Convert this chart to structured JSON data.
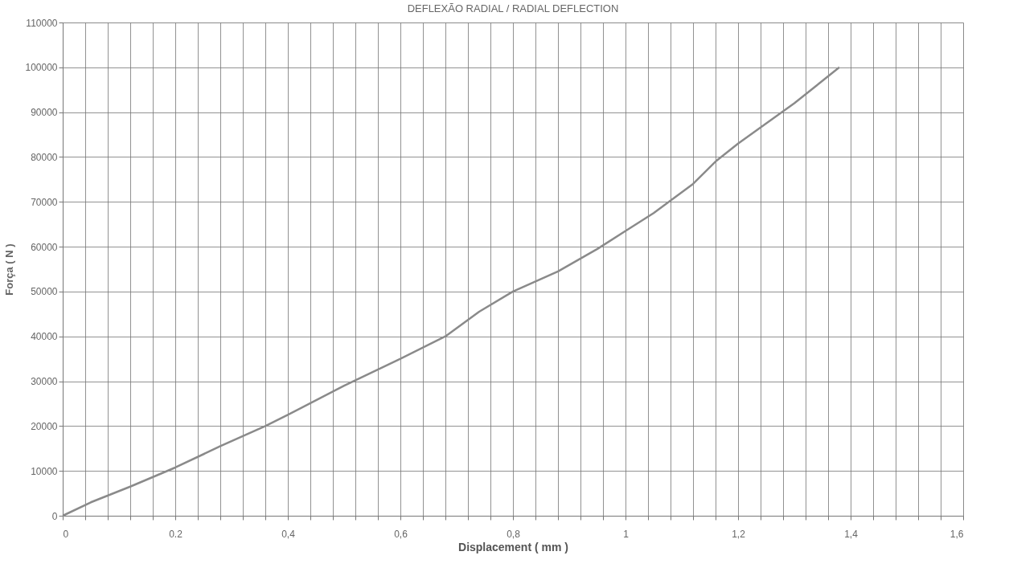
{
  "chart_data": {
    "type": "line",
    "title": "DEFLEXÃO RADIAL / RADIAL DEFLECTION",
    "xlabel": "Displacement  ( mm )",
    "ylabel": "Força ( N  )",
    "x": [
      0,
      0.05,
      0.12,
      0.2,
      0.28,
      0.36,
      0.4,
      0.5,
      0.6,
      0.68,
      0.74,
      0.8,
      0.88,
      0.95,
      1.0,
      1.05,
      1.12,
      1.16,
      1.2,
      1.3,
      1.38
    ],
    "series": [
      {
        "color": "#8a8a8a",
        "values": [
          0,
          3000,
          6500,
          10750,
          15500,
          20000,
          22500,
          29000,
          35000,
          40000,
          45500,
          50000,
          54500,
          59500,
          63500,
          67500,
          74000,
          79000,
          83000,
          92000,
          100000
        ]
      }
    ],
    "xlim": [
      0,
      1.6
    ],
    "ylim": [
      0,
      110000
    ],
    "xticks": [
      0,
      {
        "value": 0.04,
        "label": null
      },
      {
        "value": 0.08,
        "label": null
      },
      {
        "value": 0.12,
        "label": null
      },
      {
        "value": 0.16,
        "label": null
      },
      {
        "value": 0.2,
        "label": "0.2"
      },
      {
        "value": 0.24,
        "label": null
      },
      {
        "value": 0.28,
        "label": null
      },
      {
        "value": 0.32,
        "label": null
      },
      {
        "value": 0.36,
        "label": null
      },
      {
        "value": 0.4,
        "label": "0,4"
      },
      {
        "value": 0.44,
        "label": null
      },
      {
        "value": 0.48,
        "label": null
      },
      {
        "value": 0.52,
        "label": null
      },
      {
        "value": 0.56,
        "label": null
      },
      {
        "value": 0.6,
        "label": "0,6"
      },
      {
        "value": 0.64,
        "label": null
      },
      {
        "value": 0.68,
        "label": null
      },
      {
        "value": 0.72,
        "label": null
      },
      {
        "value": 0.76,
        "label": null
      },
      {
        "value": 0.8,
        "label": "0,8"
      },
      {
        "value": 0.84,
        "label": null
      },
      {
        "value": 0.88,
        "label": null
      },
      {
        "value": 0.92,
        "label": null
      },
      {
        "value": 0.96,
        "label": null
      },
      1,
      {
        "value": 1.04,
        "label": null
      },
      {
        "value": 1.08,
        "label": null
      },
      {
        "value": 1.12,
        "label": null
      },
      {
        "value": 1.16,
        "label": null
      },
      {
        "value": 1.2,
        "label": "1,2"
      },
      {
        "value": 1.24,
        "label": null
      },
      {
        "value": 1.28,
        "label": null
      },
      {
        "value": 1.32,
        "label": null
      },
      {
        "value": 1.36,
        "label": null
      },
      {
        "value": 1.4,
        "label": "1,4"
      },
      {
        "value": 1.44,
        "label": null
      },
      {
        "value": 1.48,
        "label": null
      },
      {
        "value": 1.52,
        "label": null
      },
      {
        "value": 1.56,
        "label": null
      },
      {
        "value": 1.6,
        "label": "1,6"
      }
    ],
    "yticks": [
      0,
      10000,
      20000,
      30000,
      40000,
      50000,
      60000,
      70000,
      80000,
      90000,
      100000,
      110000
    ],
    "grid": true,
    "marker": "none",
    "line_style": "solid"
  }
}
